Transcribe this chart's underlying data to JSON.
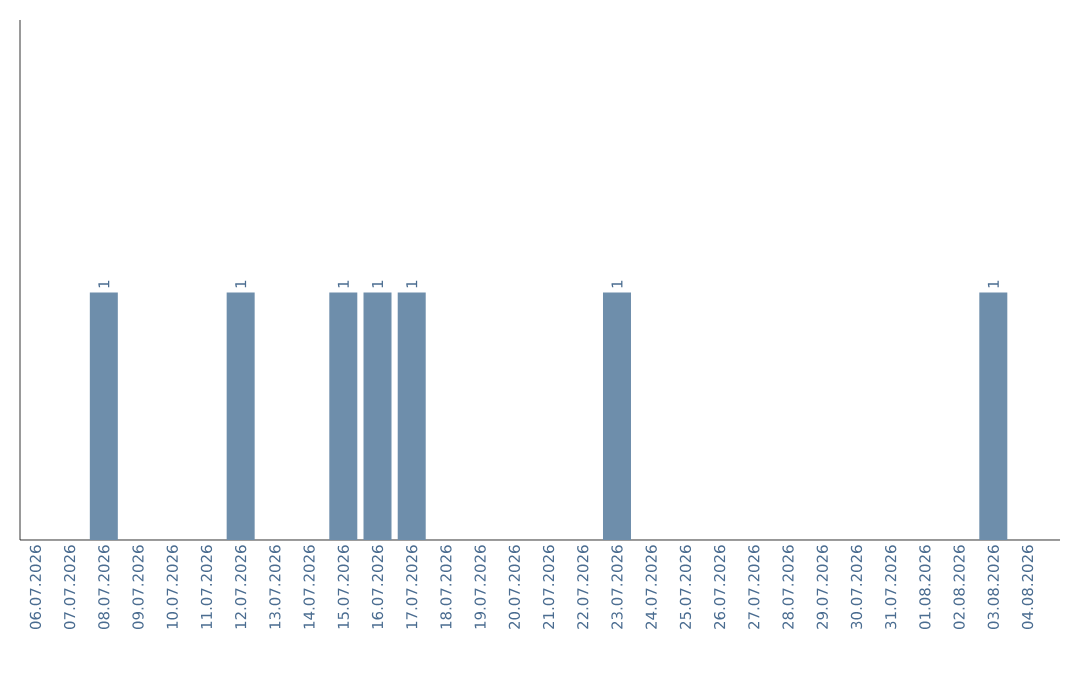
{
  "chart_data": {
    "type": "bar",
    "categories": [
      "06.07.2026",
      "07.07.2026",
      "08.07.2026",
      "09.07.2026",
      "10.07.2026",
      "11.07.2026",
      "12.07.2026",
      "13.07.2026",
      "14.07.2026",
      "15.07.2026",
      "16.07.2026",
      "17.07.2026",
      "18.07.2026",
      "19.07.2026",
      "20.07.2026",
      "21.07.2026",
      "22.07.2026",
      "23.07.2026",
      "24.07.2026",
      "25.07.2026",
      "26.07.2026",
      "27.07.2026",
      "28.07.2026",
      "29.07.2026",
      "30.07.2026",
      "31.07.2026",
      "01.08.2026",
      "02.08.2026",
      "03.08.2026",
      "04.08.2026"
    ],
    "values": [
      0,
      0,
      1,
      0,
      0,
      0,
      1,
      0,
      0,
      1,
      1,
      1,
      0,
      0,
      0,
      0,
      0,
      1,
      0,
      0,
      0,
      0,
      0,
      0,
      0,
      0,
      0,
      0,
      1,
      0
    ],
    "value_labels": [
      null,
      null,
      "1",
      null,
      null,
      null,
      "1",
      null,
      null,
      "1",
      "1",
      "1",
      null,
      null,
      null,
      null,
      null,
      "1",
      null,
      null,
      null,
      null,
      null,
      null,
      null,
      null,
      null,
      null,
      "1",
      null
    ],
    "color": "#6e8eab",
    "ylim": [
      0,
      2.1
    ],
    "tick_labels": "x"
  }
}
